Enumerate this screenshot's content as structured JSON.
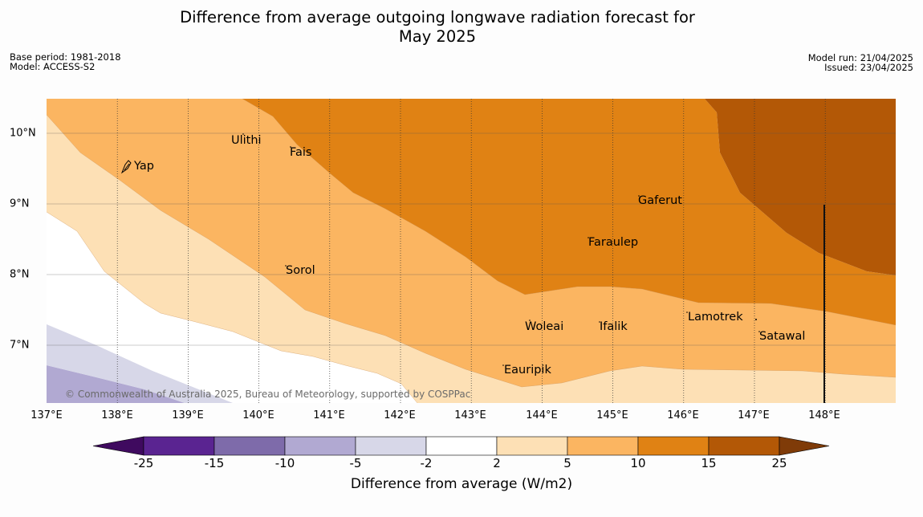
{
  "title_line1": "Difference from average outgoing longwave radiation forecast for",
  "title_line2": "May 2025",
  "meta": {
    "base_period": "Base period: 1981-2018",
    "model": "Model: ACCESS-S2",
    "model_run": "Model run: 21/04/2025",
    "issued": "Issued: 23/04/2025"
  },
  "axes": {
    "x_ticks": [
      "137°E",
      "138°E",
      "139°E",
      "140°E",
      "141°E",
      "142°E",
      "143°E",
      "144°E",
      "145°E",
      "146°E",
      "147°E",
      "148°E"
    ],
    "y_ticks": [
      "10°N",
      "9°N",
      "8°N",
      "7°N"
    ],
    "lon_range": [
      137,
      149
    ],
    "lat_range": [
      6.2,
      10.5
    ]
  },
  "places": [
    "Yap",
    "Ulithi",
    "Fais",
    "Gaferut",
    "Faraulep",
    "Sorol",
    "Woleai",
    "Ifalik",
    "Lamotrek",
    "Satawal",
    "Eauripik"
  ],
  "copyright": "© Commonwealth of Australia 2025, Bureau of Meteorology, supported by COSPPac",
  "colorbar": {
    "labels": [
      "-25",
      "-15",
      "-10",
      "-5",
      "-2",
      "2",
      "5",
      "10",
      "15",
      "25"
    ],
    "title": "Difference from average (W/m2)",
    "colors": [
      "#3f0a5f",
      "#5a2491",
      "#7e6baa",
      "#b1a9d2",
      "#d7d7e8",
      "#ffffff",
      "#fde0b5",
      "#fbb561",
      "#e08214",
      "#b35806",
      "#7f3b08"
    ]
  }
}
